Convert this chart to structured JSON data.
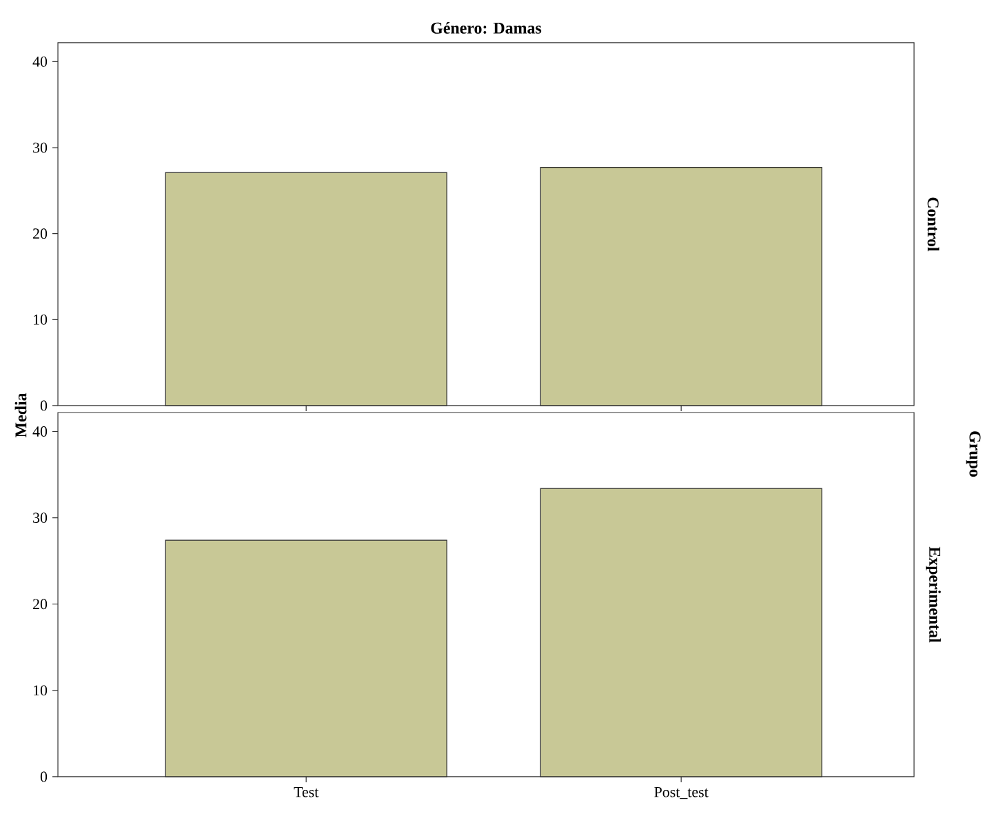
{
  "chart_data": [
    {
      "type": "bar",
      "title": "Género: Damas",
      "ylabel": "Media",
      "y2label": "Control",
      "categories": [
        null,
        null
      ],
      "values": [
        27.1,
        27.7
      ],
      "color": "#c8c896",
      "ylim": [
        0,
        42.2
      ],
      "yticks": [
        0,
        10,
        20,
        30,
        40
      ],
      "tick_labels": "y"
    },
    {
      "type": "bar",
      "y2label": "Experimental",
      "annotations": [
        "Grupo"
      ],
      "categories": [
        "Test",
        "Post_test"
      ],
      "values": [
        27.4,
        33.4
      ],
      "color": "#c8c896",
      "ylim": [
        0,
        42.2
      ],
      "yticks": [
        0,
        10,
        20,
        30,
        40
      ]
    }
  ]
}
